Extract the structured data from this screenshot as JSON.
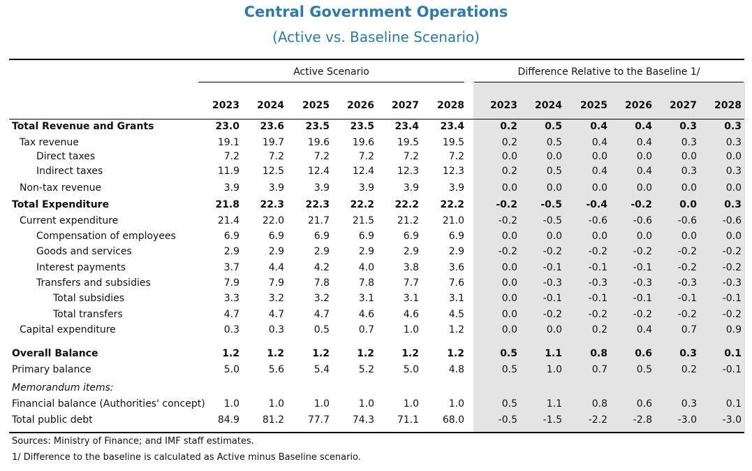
{
  "title": "Central Government Operations",
  "subtitle": "(Active vs. Baseline Scenario)",
  "groups": {
    "active": "Active Scenario",
    "difference": "Difference Relative to the Baseline 1/"
  },
  "years": [
    "2023",
    "2024",
    "2025",
    "2026",
    "2027",
    "2028"
  ],
  "rows": [
    {
      "label": "Total Revenue and Grants",
      "indent": 0,
      "bold": true,
      "active": [
        "23.0",
        "23.6",
        "23.5",
        "23.5",
        "23.4",
        "23.4"
      ],
      "diff": [
        "0.2",
        "0.5",
        "0.4",
        "0.4",
        "0.3",
        "0.3"
      ]
    },
    {
      "label": "Tax revenue",
      "indent": 1,
      "bold": false,
      "active": [
        "19.1",
        "19.7",
        "19.6",
        "19.6",
        "19.5",
        "19.5"
      ],
      "diff": [
        "0.2",
        "0.5",
        "0.4",
        "0.4",
        "0.3",
        "0.3"
      ]
    },
    {
      "label": "Direct taxes",
      "indent": 2,
      "bold": false,
      "active": [
        "7.2",
        "7.2",
        "7.2",
        "7.2",
        "7.2",
        "7.2"
      ],
      "diff": [
        "0.0",
        "0.0",
        "0.0",
        "0.0",
        "0.0",
        "0.0"
      ]
    },
    {
      "label": "Indirect taxes",
      "indent": 2,
      "bold": false,
      "active": [
        "11.9",
        "12.5",
        "12.4",
        "12.4",
        "12.3",
        "12.3"
      ],
      "diff": [
        "0.2",
        "0.5",
        "0.4",
        "0.4",
        "0.3",
        "0.3"
      ]
    },
    {
      "label": "Non-tax revenue",
      "indent": 1,
      "bold": false,
      "active": [
        "3.9",
        "3.9",
        "3.9",
        "3.9",
        "3.9",
        "3.9"
      ],
      "diff": [
        "0.0",
        "0.0",
        "0.0",
        "0.0",
        "0.0",
        "0.0"
      ]
    },
    {
      "label": "Total Expenditure",
      "indent": 0,
      "bold": true,
      "active": [
        "21.8",
        "22.3",
        "22.3",
        "22.2",
        "22.2",
        "22.2"
      ],
      "diff": [
        "-0.2",
        "-0.5",
        "-0.4",
        "-0.2",
        "0.0",
        "0.3"
      ]
    },
    {
      "label": "Current expenditure",
      "indent": 1,
      "bold": false,
      "active": [
        "21.4",
        "22.0",
        "21.7",
        "21.5",
        "21.2",
        "21.0"
      ],
      "diff": [
        "-0.2",
        "-0.5",
        "-0.6",
        "-0.6",
        "-0.6",
        "-0.6"
      ]
    },
    {
      "label": "Compensation of employees",
      "indent": 2,
      "bold": false,
      "active": [
        "6.9",
        "6.9",
        "6.9",
        "6.9",
        "6.9",
        "6.9"
      ],
      "diff": [
        "0.0",
        "0.0",
        "0.0",
        "0.0",
        "0.0",
        "0.0"
      ]
    },
    {
      "label": "Goods and services",
      "indent": 2,
      "bold": false,
      "active": [
        "2.9",
        "2.9",
        "2.9",
        "2.9",
        "2.9",
        "2.9"
      ],
      "diff": [
        "-0.2",
        "-0.2",
        "-0.2",
        "-0.2",
        "-0.2",
        "-0.2"
      ]
    },
    {
      "label": "Interest payments",
      "indent": 2,
      "bold": false,
      "active": [
        "3.7",
        "4.4",
        "4.2",
        "4.0",
        "3.8",
        "3.6"
      ],
      "diff": [
        "0.0",
        "-0.1",
        "-0.1",
        "-0.1",
        "-0.2",
        "-0.2"
      ]
    },
    {
      "label": "Transfers and subsidies",
      "indent": 2,
      "bold": false,
      "active": [
        "7.9",
        "7.9",
        "7.8",
        "7.8",
        "7.7",
        "7.6"
      ],
      "diff": [
        "0.0",
        "-0.3",
        "-0.3",
        "-0.3",
        "-0.3",
        "-0.3"
      ]
    },
    {
      "label": "Total subsidies",
      "indent": 3,
      "bold": false,
      "active": [
        "3.3",
        "3.2",
        "3.2",
        "3.1",
        "3.1",
        "3.1"
      ],
      "diff": [
        "0.0",
        "-0.1",
        "-0.1",
        "-0.1",
        "-0.1",
        "-0.1"
      ]
    },
    {
      "label": "Total transfers",
      "indent": 3,
      "bold": false,
      "active": [
        "4.7",
        "4.7",
        "4.7",
        "4.6",
        "4.6",
        "4.5"
      ],
      "diff": [
        "0.0",
        "-0.2",
        "-0.2",
        "-0.2",
        "-0.2",
        "-0.2"
      ]
    },
    {
      "label": "Capital expenditure",
      "indent": 1,
      "bold": false,
      "active": [
        "0.3",
        "0.3",
        "0.5",
        "0.7",
        "1.0",
        "1.2"
      ],
      "diff": [
        "0.0",
        "0.0",
        "0.2",
        "0.4",
        "0.7",
        "0.9"
      ]
    },
    {
      "label": "Overall Balance",
      "indent": 0,
      "bold": true,
      "active": [
        "1.2",
        "1.2",
        "1.2",
        "1.2",
        "1.2",
        "1.2"
      ],
      "diff": [
        "0.5",
        "1.1",
        "0.8",
        "0.6",
        "0.3",
        "0.1"
      ]
    },
    {
      "label": "Primary balance",
      "indent": 0,
      "bold": false,
      "active": [
        "5.0",
        "5.6",
        "5.4",
        "5.2",
        "5.0",
        "4.8"
      ],
      "diff": [
        "0.5",
        "1.0",
        "0.7",
        "0.5",
        "0.2",
        "-0.1"
      ]
    },
    {
      "label": "Memorandum items:",
      "indent": 0,
      "bold": false,
      "italic": true,
      "active": [],
      "diff": []
    },
    {
      "label": "Financial balance (Authorities' concept)",
      "indent": 0,
      "bold": false,
      "active": [
        "1.0",
        "1.0",
        "1.0",
        "1.0",
        "1.0",
        "1.0"
      ],
      "diff": [
        "0.5",
        "1.1",
        "0.8",
        "0.6",
        "0.3",
        "0.1"
      ]
    },
    {
      "label": "Total public debt",
      "indent": 0,
      "bold": false,
      "active": [
        "84.9",
        "81.2",
        "77.7",
        "74.3",
        "71.1",
        "68.0"
      ],
      "diff": [
        "-0.5",
        "-1.5",
        "-2.2",
        "-2.8",
        "-3.0",
        "-3.0"
      ]
    }
  ],
  "footnotes": [
    "Sources: Ministry of Finance; and IMF staff estimates.",
    "1/ Difference to the baseline is calculated as Active minus Baseline scenario."
  ]
}
